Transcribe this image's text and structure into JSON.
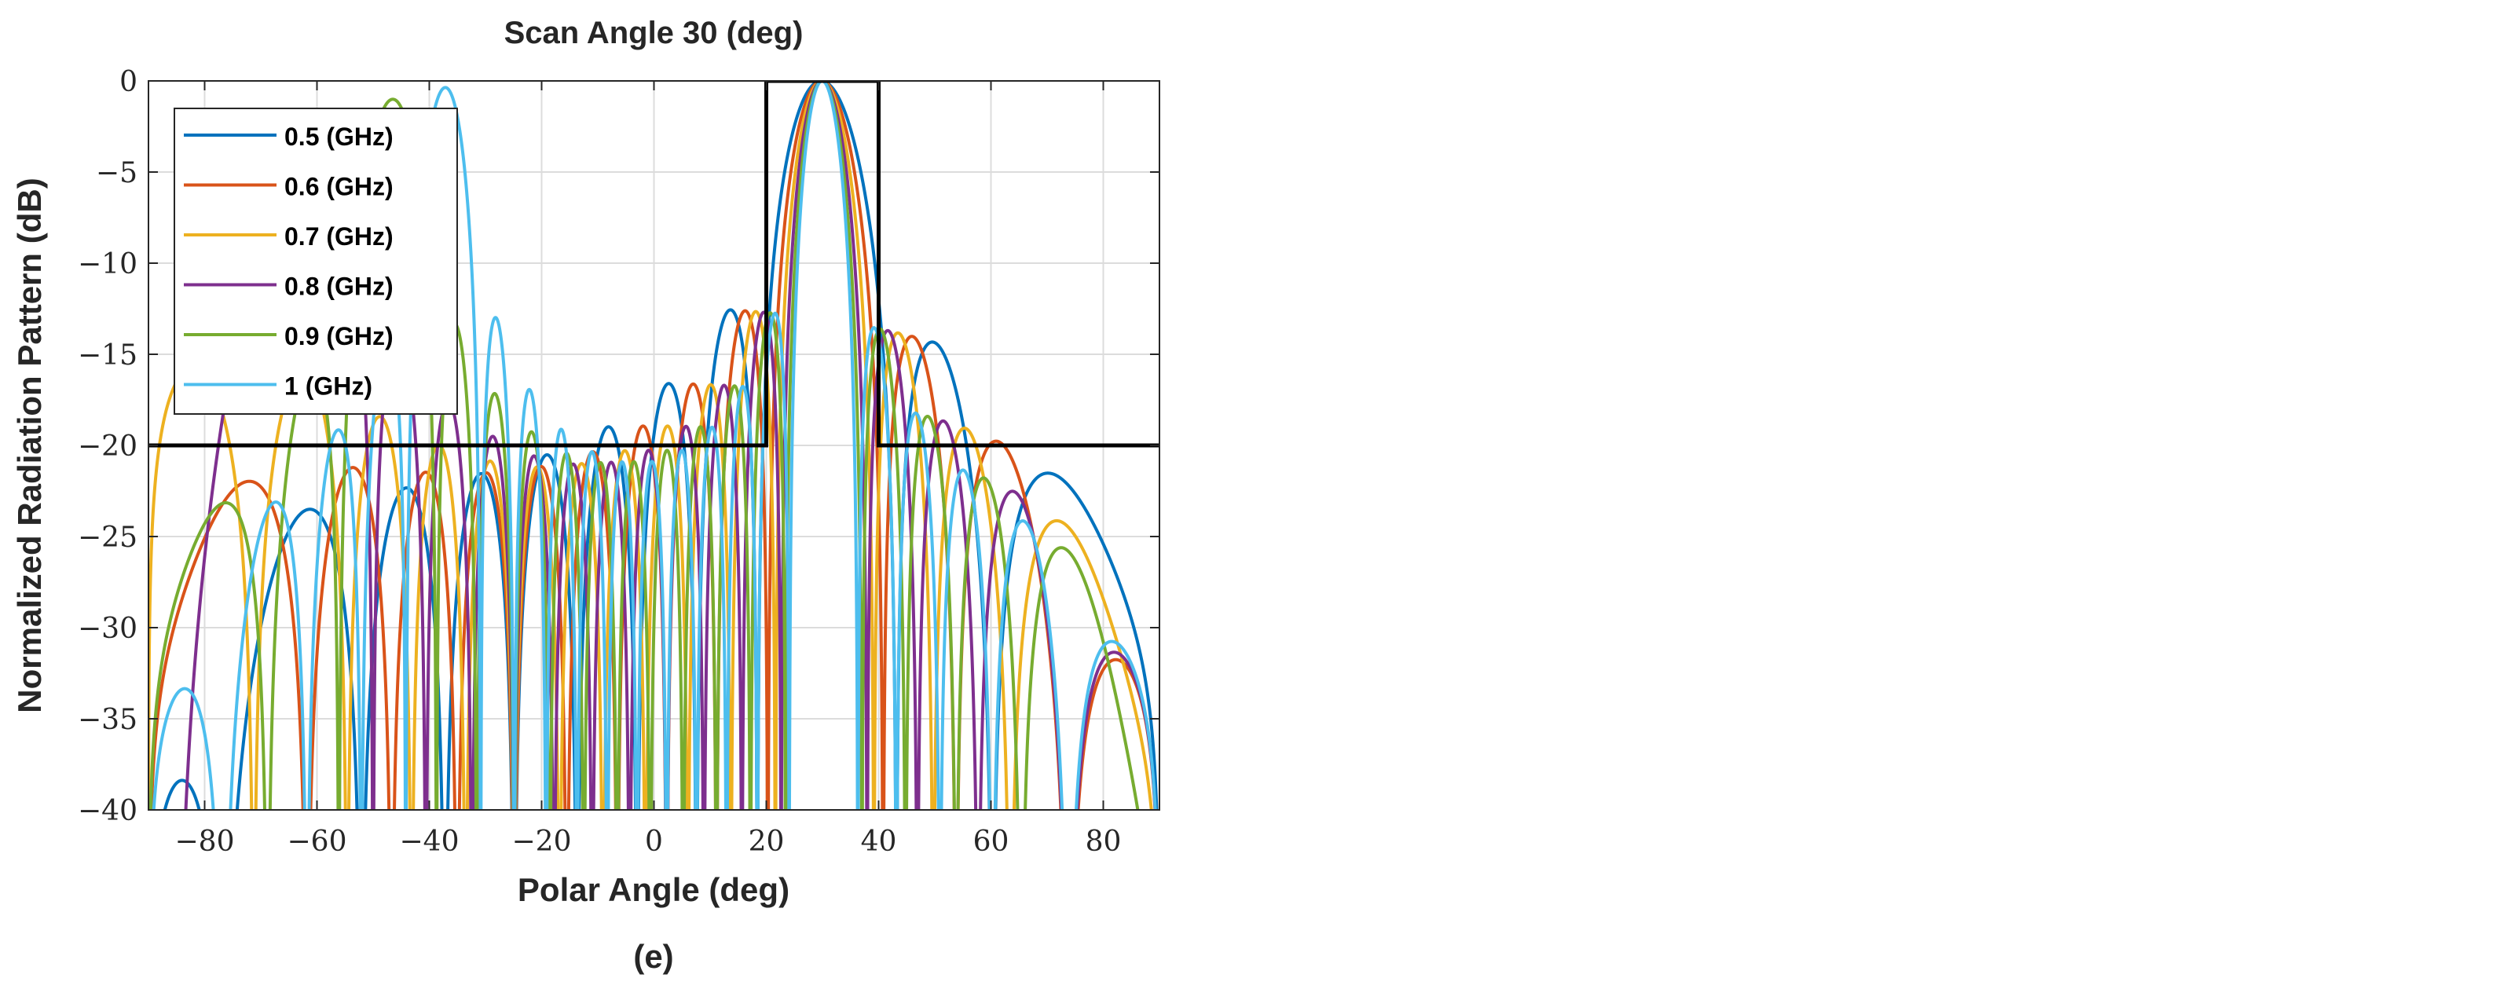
{
  "chart_data": {
    "type": "line",
    "title": "Scan Angle 30 (deg)",
    "xlabel": "Polar Angle (deg)",
    "ylabel": "Normalized Radiation Pattern (dB)",
    "caption": "(e)",
    "xlim": [
      -90,
      90
    ],
    "ylim": [
      -40,
      0
    ],
    "xticks": [
      -80,
      -60,
      -40,
      -20,
      0,
      20,
      40,
      60,
      80
    ],
    "yticks": [
      0,
      -5,
      -10,
      -15,
      -20,
      -25,
      -30,
      -35,
      -40
    ],
    "xtick_labels": [
      "−80",
      "−60",
      "−40",
      "−20",
      "0",
      "20",
      "40",
      "60",
      "80"
    ],
    "ytick_labels": [
      "0",
      "−5",
      "−10",
      "−15",
      "−20",
      "−25",
      "−30",
      "−35",
      "−40"
    ],
    "grid": true,
    "legend_position": "top-left",
    "scan_angle_deg": 30,
    "series": [
      {
        "name": "0.5 (GHz)",
        "frequency_ghz": 0.5,
        "color": "#0072BD"
      },
      {
        "name": "0.6 (GHz)",
        "frequency_ghz": 0.6,
        "color": "#D95319"
      },
      {
        "name": "0.7 (GHz)",
        "frequency_ghz": 0.7,
        "color": "#EDB120"
      },
      {
        "name": "0.8 (GHz)",
        "frequency_ghz": 0.8,
        "color": "#7E2F8E"
      },
      {
        "name": "0.9 (GHz)",
        "frequency_ghz": 0.9,
        "color": "#77AC30"
      },
      {
        "name": "1 (GHz)",
        "frequency_ghz": 1.0,
        "color": "#4DBEEE"
      }
    ],
    "mask": {
      "color": "#000000",
      "points": [
        [
          -90,
          -20
        ],
        [
          20,
          -20
        ],
        [
          20,
          0
        ],
        [
          40,
          0
        ],
        [
          40,
          -20
        ],
        [
          90,
          -20
        ]
      ]
    }
  }
}
